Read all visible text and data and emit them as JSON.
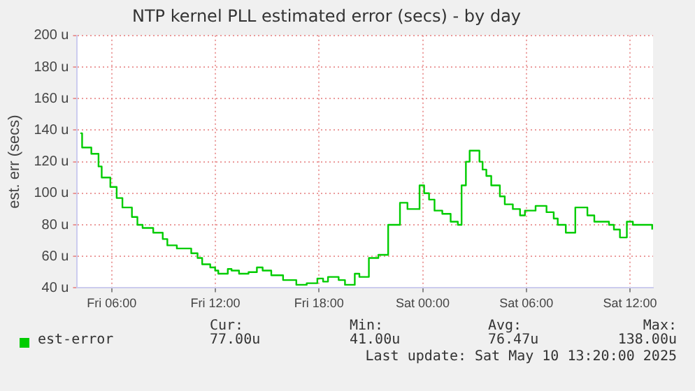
{
  "chart_data": {
    "type": "step",
    "title": "NTP kernel PLL estimated error (secs) - by day",
    "ylabel": "est. err (secs)",
    "x": [
      "2025-05-09T04:11",
      "2025-05-09T04:17",
      "2025-05-09T04:49",
      "2025-05-09T05:14",
      "2025-05-09T05:25",
      "2025-05-09T05:55",
      "2025-05-09T06:17",
      "2025-05-09T06:37",
      "2025-05-09T07:10",
      "2025-05-09T07:29",
      "2025-05-09T07:47",
      "2025-05-09T08:24",
      "2025-05-09T08:57",
      "2025-05-09T09:13",
      "2025-05-09T09:46",
      "2025-05-09T10:36",
      "2025-05-09T10:58",
      "2025-05-09T11:14",
      "2025-05-09T11:42",
      "2025-05-09T11:59",
      "2025-05-09T12:10",
      "2025-05-09T12:43",
      "2025-05-09T12:56",
      "2025-05-09T13:22",
      "2025-05-09T13:55",
      "2025-05-09T14:24",
      "2025-05-09T14:44",
      "2025-05-09T15:14",
      "2025-05-09T15:55",
      "2025-05-09T16:41",
      "2025-05-09T17:17",
      "2025-05-09T17:54",
      "2025-05-09T18:14",
      "2025-05-09T18:31",
      "2025-05-09T19:02",
      "2025-05-09T19:08",
      "2025-05-09T19:30",
      "2025-05-09T20:04",
      "2025-05-09T20:20",
      "2025-05-09T20:53",
      "2025-05-09T21:26",
      "2025-05-09T22:00",
      "2025-05-09T22:41",
      "2025-05-09T23:07",
      "2025-05-09T23:49",
      "2025-05-10T00:05",
      "2025-05-10T00:22",
      "2025-05-10T00:41",
      "2025-05-10T01:08",
      "2025-05-10T01:37",
      "2025-05-10T02:02",
      "2025-05-10T02:15",
      "2025-05-10T02:30",
      "2025-05-10T02:43",
      "2025-05-10T03:17",
      "2025-05-10T03:28",
      "2025-05-10T03:41",
      "2025-05-10T03:58",
      "2025-05-10T04:28",
      "2025-05-10T04:45",
      "2025-05-10T05:13",
      "2025-05-10T05:38",
      "2025-05-10T05:55",
      "2025-05-10T06:32",
      "2025-05-10T07:10",
      "2025-05-10T07:35",
      "2025-05-10T07:49",
      "2025-05-10T08:17",
      "2025-05-10T08:50",
      "2025-05-10T09:32",
      "2025-05-10T09:56",
      "2025-05-10T10:47",
      "2025-05-10T11:04",
      "2025-05-10T11:25",
      "2025-05-10T11:49",
      "2025-05-10T12:10",
      "2025-05-10T13:17"
    ],
    "series": [
      {
        "name": "est-error",
        "color": "#00cc00",
        "values": [
          138,
          129,
          125,
          117,
          110,
          104,
          97,
          91,
          85,
          80,
          78,
          75,
          71,
          67,
          65,
          62,
          59,
          55,
          53,
          51,
          49,
          52,
          51,
          49,
          50,
          53,
          51,
          48,
          45,
          42,
          43,
          46,
          44,
          47,
          47,
          45,
          42,
          49,
          47,
          59,
          61,
          80,
          94,
          90,
          105,
          100,
          96,
          89,
          87,
          82,
          80,
          105,
          120,
          127,
          120,
          115,
          111,
          105,
          98,
          93,
          90,
          86,
          89,
          92,
          88,
          84,
          80,
          75,
          91,
          86,
          82,
          80,
          77,
          72,
          82,
          80,
          77
        ]
      }
    ],
    "xlim": [
      "2025-05-09T04:00",
      "2025-05-10T13:20"
    ],
    "xticks": [
      {
        "value": "2025-05-09T06:00",
        "label": "Fri 06:00"
      },
      {
        "value": "2025-05-09T12:00",
        "label": "Fri 12:00"
      },
      {
        "value": "2025-05-09T18:00",
        "label": "Fri 18:00"
      },
      {
        "value": "2025-05-10T00:00",
        "label": "Sat 00:00"
      },
      {
        "value": "2025-05-10T06:00",
        "label": "Sat 06:00"
      },
      {
        "value": "2025-05-10T12:00",
        "label": "Sat 12:00"
      }
    ],
    "ylim": [
      40,
      200
    ],
    "yticks": [
      {
        "value": 40,
        "label": "40 u"
      },
      {
        "value": 60,
        "label": "60 u"
      },
      {
        "value": 80,
        "label": "80 u"
      },
      {
        "value": 100,
        "label": "100 u"
      },
      {
        "value": 120,
        "label": "120 u"
      },
      {
        "value": 140,
        "label": "140 u"
      },
      {
        "value": 160,
        "label": "160 u"
      },
      {
        "value": 180,
        "label": "180 u"
      },
      {
        "value": 200,
        "label": "200 u"
      }
    ],
    "grid": true,
    "legend": "bottom left",
    "line_style": "solid",
    "annotations": [
      "Cur:",
      "Min:",
      "Avg:",
      "Max:",
      "77.00u",
      "41.00u",
      "76.47u",
      "138.00u",
      "Last update: Sat May 10 13:20:00 2025"
    ]
  }
}
